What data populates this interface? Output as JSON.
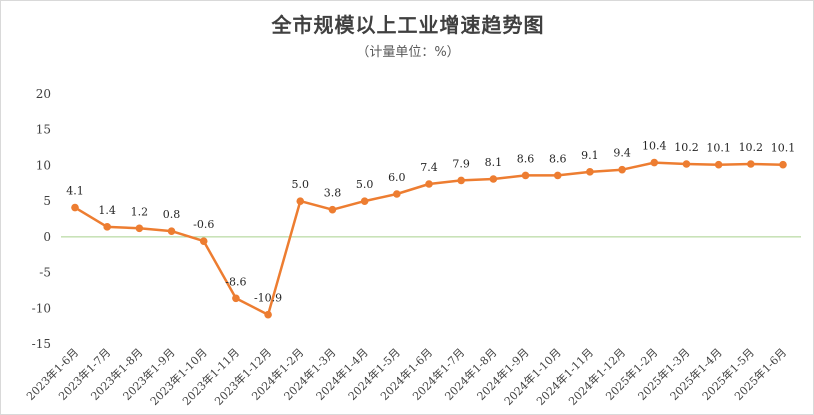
{
  "chart_data": {
    "type": "line",
    "title": "全市规模以上工业增速趋势图",
    "subtitle": "（计量单位：%）",
    "categories": [
      "2023年1-6月",
      "2023年1-7月",
      "2023年1-8月",
      "2023年1-9月",
      "2023年1-10月",
      "2023年1-11月",
      "2023年1-12月",
      "2024年1-2月",
      "2024年1-3月",
      "2024年1-4月",
      "2024年1-5月",
      "2024年1-6月",
      "2024年1-7月",
      "2024年1-8月",
      "2024年1-9月",
      "2024年1-10月",
      "2024年1-11月",
      "2024年1-12月",
      "2025年1-2月",
      "2025年1-3月",
      "2025年1-4月",
      "2025年1-5月",
      "2025年1-6月"
    ],
    "values": [
      4.1,
      1.4,
      1.2,
      0.8,
      -0.6,
      -8.6,
      -10.9,
      5.0,
      3.8,
      5.0,
      6.0,
      7.4,
      7.9,
      8.1,
      8.6,
      8.6,
      9.1,
      9.4,
      10.4,
      10.2,
      10.1,
      10.2,
      10.1
    ],
    "value_labels": [
      "4.1",
      "1.4",
      "1.2",
      "0.8",
      "-0.6",
      "-8.6",
      "-10.9",
      "5.0",
      "3.8",
      "5.0",
      "6.0",
      "7.4",
      "7.9",
      "8.1",
      "8.6",
      "8.6",
      "9.1",
      "9.4",
      "10.4",
      "10.2",
      "10.1",
      "10.2",
      "10.1"
    ],
    "y_ticks": [
      20,
      15,
      10,
      5,
      0,
      -5,
      -10,
      -15
    ],
    "ylim": [
      -15,
      20
    ],
    "grid": false,
    "legend": "none",
    "line_color": "#ED7D31",
    "zero_line_color": "#A9D18E",
    "xlabel": "",
    "ylabel": ""
  }
}
